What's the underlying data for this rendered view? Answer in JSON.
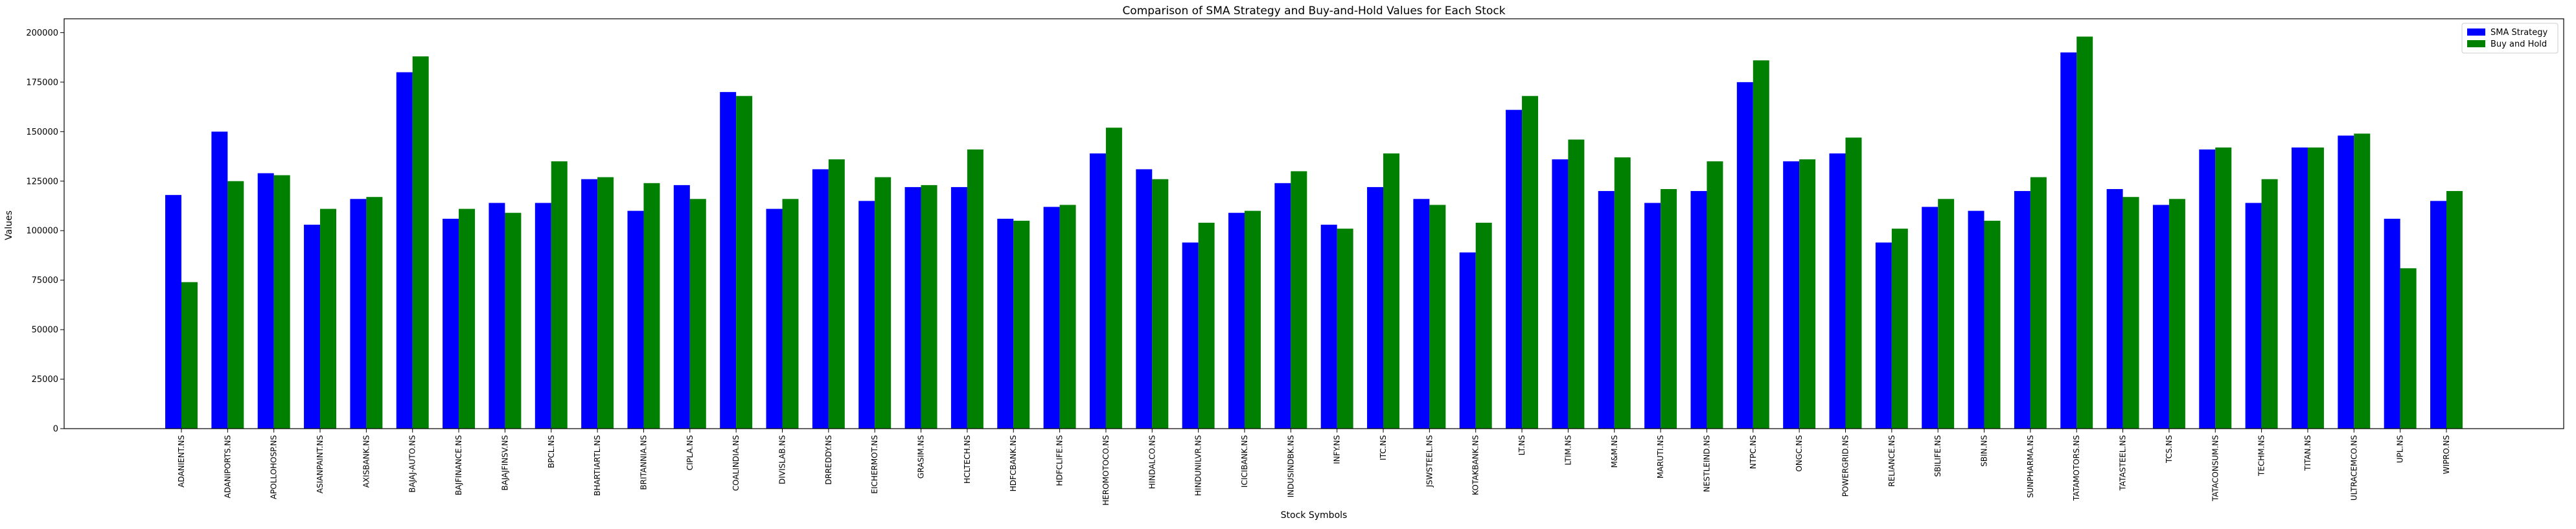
{
  "chart_data": {
    "type": "bar",
    "title": "Comparison of SMA Strategy and Buy-and-Hold Values for Each Stock",
    "xlabel": "Stock Symbols",
    "ylabel": "Values",
    "ylim": [
      0,
      207000
    ],
    "yticks": [
      0,
      25000,
      50000,
      75000,
      100000,
      125000,
      150000,
      175000,
      200000
    ],
    "grid": false,
    "legend_position": "top-right",
    "categories": [
      "ADANIENT.NS",
      "ADANIPORTS.NS",
      "APOLLOHOSP.NS",
      "ASIANPAINT.NS",
      "AXISBANK.NS",
      "BAJAJ-AUTO.NS",
      "BAJFINANCE.NS",
      "BAJAJFINSV.NS",
      "BPCL.NS",
      "BHARTIARTL.NS",
      "BRITANNIA.NS",
      "CIPLA.NS",
      "COALINDIA.NS",
      "DIVISLAB.NS",
      "DRREDDY.NS",
      "EICHERMOT.NS",
      "GRASIM.NS",
      "HCLTECH.NS",
      "HDFCBANK.NS",
      "HDFCLIFE.NS",
      "HEROMOTOCO.NS",
      "HINDALCO.NS",
      "HINDUNILVR.NS",
      "ICICIBANK.NS",
      "INDUSINDBK.NS",
      "INFY.NS",
      "ITC.NS",
      "JSWSTEEL.NS",
      "KOTAKBANK.NS",
      "LT.NS",
      "LTIM.NS",
      "M&M.NS",
      "MARUTI.NS",
      "NESTLEIND.NS",
      "NTPC.NS",
      "ONGC.NS",
      "POWERGRID.NS",
      "RELIANCE.NS",
      "SBILIFE.NS",
      "SBIN.NS",
      "SUNPHARMA.NS",
      "TATAMOTORS.NS",
      "TATASTEEL.NS",
      "TCS.NS",
      "TATACONSUM.NS",
      "TECHM.NS",
      "TITAN.NS",
      "ULTRACEMCO.NS",
      "UPL.NS",
      "WIPRO.NS"
    ],
    "series": [
      {
        "name": "SMA Strategy",
        "color": "#0000ff",
        "values": [
          118000,
          150000,
          129000,
          103000,
          116000,
          180000,
          106000,
          114000,
          114000,
          126000,
          110000,
          123000,
          170000,
          111000,
          131000,
          115000,
          122000,
          122000,
          106000,
          112000,
          139000,
          131000,
          94000,
          109000,
          124000,
          103000,
          122000,
          116000,
          89000,
          161000,
          136000,
          120000,
          114000,
          120000,
          175000,
          135000,
          139000,
          94000,
          112000,
          110000,
          120000,
          190000,
          121000,
          113000,
          141000,
          114000,
          142000,
          148000,
          106000,
          115000
        ]
      },
      {
        "name": "Buy and Hold",
        "color": "#008000",
        "values": [
          74000,
          125000,
          128000,
          111000,
          117000,
          188000,
          111000,
          109000,
          135000,
          127000,
          124000,
          116000,
          168000,
          116000,
          136000,
          127000,
          123000,
          141000,
          105000,
          113000,
          152000,
          126000,
          104000,
          110000,
          130000,
          101000,
          139000,
          113000,
          104000,
          168000,
          146000,
          137000,
          121000,
          135000,
          186000,
          136000,
          147000,
          101000,
          116000,
          105000,
          127000,
          198000,
          117000,
          116000,
          142000,
          126000,
          142000,
          149000,
          81000,
          120000
        ]
      }
    ]
  }
}
